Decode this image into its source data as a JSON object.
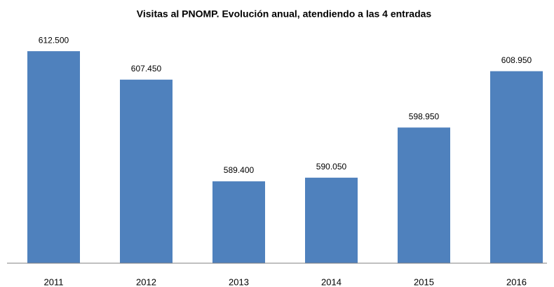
{
  "chart_data": {
    "type": "bar",
    "title": "Visitas al PNOMP. Evolución anual, atendiendo a las 4 entradas",
    "categories": [
      "2011",
      "2012",
      "2013",
      "2014",
      "2015",
      "2016"
    ],
    "values": [
      612500,
      607450,
      589400,
      590050,
      598950,
      608950
    ],
    "value_labels": [
      "612.500",
      "607.450",
      "589.400",
      "590.050",
      "598.950",
      "608.950"
    ],
    "color": "#4f81bd",
    "ylim": [
      574870,
      615000
    ]
  }
}
